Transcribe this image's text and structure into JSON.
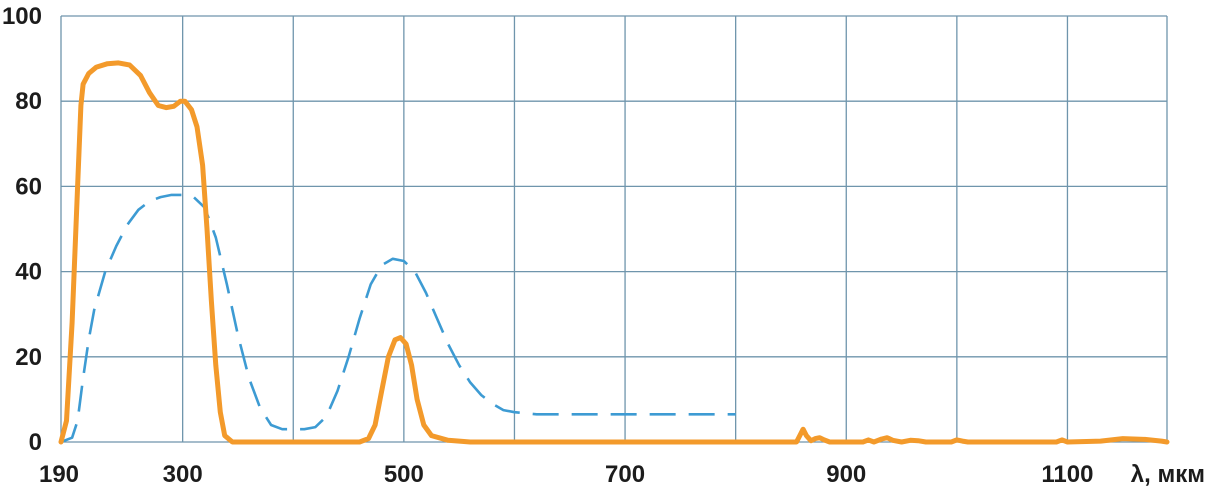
{
  "chart_data": {
    "type": "line",
    "title": "",
    "xlabel": "λ, мкм",
    "ylabel": "",
    "xlim": [
      190,
      1190
    ],
    "ylim": [
      0,
      100
    ],
    "grid": true,
    "legend": "none",
    "x_ticks": [
      190,
      300,
      500,
      700,
      900,
      1100
    ],
    "x_tick_labels": [
      "190",
      "300",
      "500",
      "700",
      "900",
      "1100"
    ],
    "x_grid": [
      300,
      400,
      500,
      600,
      700,
      800,
      900,
      1000,
      1100,
      1190
    ],
    "y_ticks": [
      0,
      20,
      40,
      60,
      80,
      100
    ],
    "y_tick_labels": [
      "0",
      "20",
      "40",
      "60",
      "80",
      "100"
    ],
    "series": [
      {
        "style": "solid",
        "color": "#f39a2b",
        "points": [
          [
            190,
            0
          ],
          [
            195,
            5
          ],
          [
            200,
            28
          ],
          [
            205,
            60
          ],
          [
            208,
            79
          ],
          [
            210,
            84
          ],
          [
            215,
            86.5
          ],
          [
            222,
            88
          ],
          [
            232,
            88.8
          ],
          [
            242,
            89
          ],
          [
            252,
            88.5
          ],
          [
            262,
            86
          ],
          [
            270,
            82
          ],
          [
            278,
            79
          ],
          [
            285,
            78.5
          ],
          [
            292,
            78.8
          ],
          [
            298,
            80
          ],
          [
            302,
            80
          ],
          [
            308,
            78
          ],
          [
            313,
            74
          ],
          [
            318,
            65
          ],
          [
            322,
            50
          ],
          [
            326,
            33
          ],
          [
            330,
            18
          ],
          [
            334,
            7
          ],
          [
            338,
            1.5
          ],
          [
            345,
            0
          ],
          [
            400,
            0
          ],
          [
            460,
            0
          ],
          [
            468,
            0.8
          ],
          [
            474,
            4
          ],
          [
            480,
            12
          ],
          [
            486,
            20
          ],
          [
            492,
            24
          ],
          [
            497,
            24.5
          ],
          [
            502,
            23
          ],
          [
            507,
            18
          ],
          [
            512,
            10
          ],
          [
            518,
            4
          ],
          [
            525,
            1.5
          ],
          [
            540,
            0.4
          ],
          [
            560,
            0
          ],
          [
            700,
            0
          ],
          [
            800,
            0
          ],
          [
            855,
            0
          ],
          [
            858,
            1.5
          ],
          [
            861,
            3
          ],
          [
            864,
            1.5
          ],
          [
            868,
            0.3
          ],
          [
            872,
            0.8
          ],
          [
            876,
            1
          ],
          [
            880,
            0.5
          ],
          [
            885,
            0
          ],
          [
            915,
            0
          ],
          [
            920,
            0.5
          ],
          [
            925,
            0
          ],
          [
            932,
            0.7
          ],
          [
            937,
            1
          ],
          [
            942,
            0.4
          ],
          [
            950,
            0
          ],
          [
            958,
            0.4
          ],
          [
            965,
            0.3
          ],
          [
            972,
            0
          ],
          [
            995,
            0
          ],
          [
            1000,
            0.5
          ],
          [
            1005,
            0.2
          ],
          [
            1010,
            0
          ],
          [
            1090,
            0
          ],
          [
            1095,
            0.5
          ],
          [
            1100,
            0
          ],
          [
            1130,
            0.2
          ],
          [
            1150,
            0.8
          ],
          [
            1170,
            0.6
          ],
          [
            1185,
            0.2
          ],
          [
            1190,
            0
          ]
        ]
      },
      {
        "style": "dashed",
        "color": "#3d9bd3",
        "points": [
          [
            190,
            0
          ],
          [
            200,
            1
          ],
          [
            205,
            5
          ],
          [
            210,
            15
          ],
          [
            215,
            24
          ],
          [
            220,
            31
          ],
          [
            230,
            40
          ],
          [
            240,
            46
          ],
          [
            250,
            51
          ],
          [
            260,
            54.5
          ],
          [
            270,
            56.5
          ],
          [
            280,
            57.5
          ],
          [
            290,
            58
          ],
          [
            300,
            58
          ],
          [
            310,
            57.5
          ],
          [
            320,
            55
          ],
          [
            330,
            48
          ],
          [
            340,
            37
          ],
          [
            350,
            25
          ],
          [
            360,
            15
          ],
          [
            370,
            8
          ],
          [
            380,
            4
          ],
          [
            390,
            3
          ],
          [
            400,
            3
          ],
          [
            410,
            3
          ],
          [
            420,
            3.5
          ],
          [
            430,
            6
          ],
          [
            440,
            12
          ],
          [
            450,
            20
          ],
          [
            460,
            29
          ],
          [
            470,
            37
          ],
          [
            480,
            41.5
          ],
          [
            490,
            43
          ],
          [
            500,
            42.5
          ],
          [
            510,
            40
          ],
          [
            520,
            35
          ],
          [
            530,
            29
          ],
          [
            540,
            23
          ],
          [
            550,
            18
          ],
          [
            560,
            14
          ],
          [
            570,
            11
          ],
          [
            580,
            9
          ],
          [
            590,
            7.5
          ],
          [
            600,
            7
          ],
          [
            620,
            6.5
          ],
          [
            650,
            6.5
          ],
          [
            700,
            6.5
          ],
          [
            750,
            6.5
          ],
          [
            800,
            6.5
          ]
        ]
      }
    ]
  }
}
